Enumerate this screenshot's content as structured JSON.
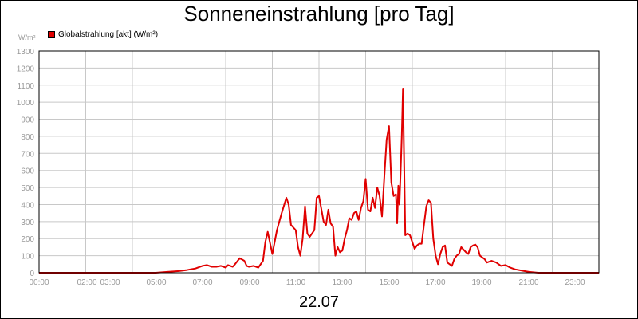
{
  "chart_data": {
    "type": "line",
    "title": "Sonneneinstrahlung [pro Tag]",
    "ylabel": "W/m²",
    "xlabel": "22.07",
    "ylim": [
      0,
      1300
    ],
    "xlim": [
      0,
      24
    ],
    "y_ticks": [
      0,
      100,
      200,
      300,
      400,
      500,
      600,
      700,
      800,
      900,
      1000,
      1100,
      1200,
      1300
    ],
    "x_tick_labels": [
      "00:00",
      "02:00",
      "03:00",
      "05:00",
      "07:00",
      "09:00",
      "11:00",
      "13:00",
      "15:00",
      "17:00",
      "19:00",
      "21:00",
      "23:00"
    ],
    "grid": true,
    "legend_position": "top-left",
    "series": [
      {
        "name": "Globalstrahlung [akt] (W/m²)",
        "color": "#e00000",
        "x": [
          0,
          5.0,
          5.5,
          6.0,
          6.3,
          6.5,
          6.7,
          7.0,
          7.2,
          7.4,
          7.6,
          7.8,
          8.0,
          8.1,
          8.3,
          8.4,
          8.6,
          8.8,
          8.9,
          9.0,
          9.2,
          9.4,
          9.6,
          9.7,
          9.8,
          10.0,
          10.2,
          10.4,
          10.6,
          10.7,
          10.8,
          11.0,
          11.1,
          11.2,
          11.3,
          11.4,
          11.5,
          11.6,
          11.8,
          11.9,
          12.0,
          12.2,
          12.3,
          12.4,
          12.5,
          12.6,
          12.7,
          12.8,
          12.9,
          13.0,
          13.1,
          13.2,
          13.3,
          13.4,
          13.5,
          13.6,
          13.7,
          13.8,
          13.9,
          14.0,
          14.1,
          14.2,
          14.3,
          14.4,
          14.5,
          14.6,
          14.7,
          14.8,
          14.9,
          15.0,
          15.1,
          15.2,
          15.3,
          15.35,
          15.4,
          15.45,
          15.5,
          15.55,
          15.6,
          15.7,
          15.8,
          15.9,
          16.0,
          16.1,
          16.2,
          16.3,
          16.4,
          16.5,
          16.6,
          16.7,
          16.8,
          16.9,
          17.0,
          17.1,
          17.2,
          17.3,
          17.4,
          17.5,
          17.6,
          17.7,
          17.8,
          17.9,
          18.0,
          18.1,
          18.3,
          18.4,
          18.5,
          18.6,
          18.7,
          18.8,
          18.9,
          19.0,
          19.1,
          19.2,
          19.4,
          19.6,
          19.8,
          20.0,
          20.2,
          20.4,
          20.8,
          21.0,
          21.4,
          22.0,
          24.0
        ],
        "y": [
          0,
          0,
          5,
          10,
          15,
          20,
          25,
          40,
          45,
          35,
          35,
          40,
          30,
          45,
          35,
          50,
          85,
          70,
          40,
          35,
          40,
          30,
          70,
          180,
          240,
          110,
          250,
          350,
          440,
          400,
          280,
          250,
          150,
          100,
          200,
          390,
          230,
          210,
          250,
          440,
          450,
          300,
          280,
          370,
          290,
          270,
          100,
          150,
          120,
          130,
          200,
          250,
          320,
          310,
          350,
          360,
          310,
          380,
          420,
          550,
          370,
          360,
          440,
          380,
          500,
          450,
          330,
          560,
          780,
          860,
          530,
          450,
          460,
          290,
          510,
          400,
          600,
          800,
          1080,
          220,
          230,
          220,
          180,
          140,
          160,
          170,
          170,
          280,
          390,
          425,
          410,
          200,
          100,
          50,
          110,
          150,
          160,
          60,
          50,
          40,
          80,
          100,
          110,
          150,
          120,
          110,
          150,
          160,
          165,
          150,
          100,
          90,
          80,
          60,
          70,
          60,
          40,
          45,
          30,
          20,
          10,
          5,
          0,
          0,
          0
        ]
      }
    ]
  },
  "labels": {
    "title": "Sonneneinstrahlung [pro Tag]",
    "unit": "W/m²",
    "date": "22.07",
    "legend": "Globalstrahlung [akt] (W/m²)"
  }
}
